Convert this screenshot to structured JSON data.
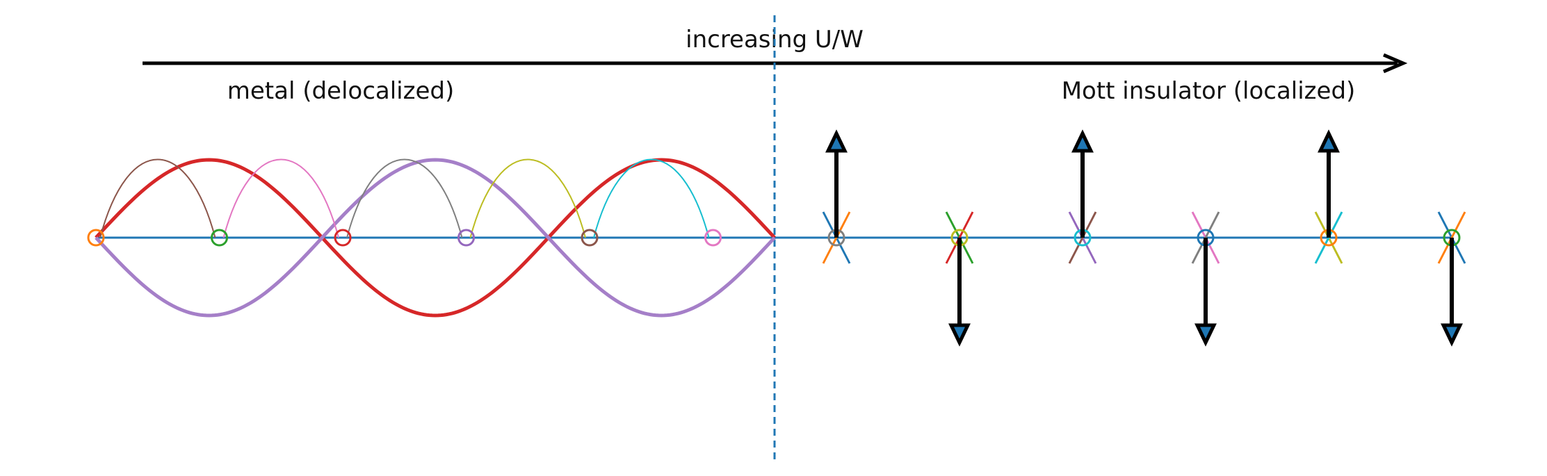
{
  "labels": {
    "axis": "increasing U/W",
    "metal": "metal (delocalized)",
    "insulator": "Mott insulator (localized)"
  },
  "colors": {
    "lattice": "#1f77b4",
    "boundary": "#1f77b4",
    "arrow": "#000000",
    "spin_fill": "#1f77b4",
    "wave_a": "#d62728",
    "wave_b": "#a57fc8",
    "site_colors": [
      "#ff7f0e",
      "#2ca02c",
      "#d62728",
      "#9467bd",
      "#8c564b",
      "#e377c2"
    ],
    "hop_colors": [
      "#8c564b",
      "#e377c2",
      "#7f7f7f",
      "#bcbd22",
      "#17becf"
    ],
    "cross_colors": [
      [
        "#1f77b4",
        "#ff7f0e"
      ],
      [
        "#2ca02c",
        "#d62728"
      ],
      [
        "#9467bd",
        "#8c564b"
      ],
      [
        "#e377c2",
        "#7f7f7f"
      ],
      [
        "#bcbd22",
        "#17becf"
      ],
      [
        "#1f77b4",
        "#ff7f0e"
      ]
    ],
    "insulator_site_colors": [
      "#7f7f7f",
      "#bcbd22",
      "#17becf",
      "#1f77b4",
      "#ff7f0e",
      "#2ca02c"
    ]
  },
  "metal_sites": 6,
  "insulator_spins": [
    "up",
    "down",
    "up",
    "down",
    "up",
    "down"
  ],
  "icons": {
    "arrow": "right-arrow",
    "spin": "spin-arrow-icon",
    "site": "circle-site-icon"
  }
}
